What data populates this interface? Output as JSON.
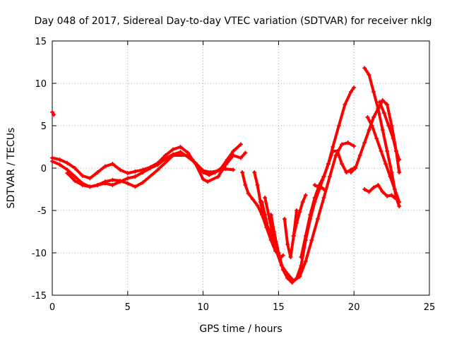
{
  "chart_data": {
    "type": "scatter",
    "title": "Day 048 of 2017, Sidereal Day-to-day VTEC variation (SDTVAR) for receiver nklg",
    "xlabel": "GPS time / hours",
    "ylabel": "SDTVAR / TECUs",
    "xlim": [
      0,
      25
    ],
    "ylim": [
      -15,
      15
    ],
    "xticks": [
      "0",
      "5",
      "10",
      "15",
      "20",
      "25"
    ],
    "yticks": [
      "-15",
      "-10",
      "-5",
      "0",
      "5",
      "10",
      "15"
    ],
    "grid": true,
    "color": "#ff0000",
    "marker": "plus",
    "series": [
      {
        "x": [
          0.0,
          0.1
        ],
        "y": [
          6.6,
          6.3
        ]
      },
      {
        "x": [
          0.0,
          0.5,
          1.0,
          1.5,
          2.0,
          2.5,
          3.0,
          3.5,
          4.0,
          4.5,
          5.0,
          5.5,
          6.0,
          6.5,
          7.0,
          7.5,
          8.0,
          8.5,
          9.0,
          9.3,
          9.6,
          10.0,
          10.4,
          10.8,
          11.2,
          11.6,
          12.0,
          12.5
        ],
        "y": [
          1.2,
          1.0,
          0.6,
          0.0,
          -0.9,
          -1.2,
          -0.5,
          0.2,
          0.5,
          -0.2,
          -0.6,
          -0.4,
          -0.2,
          0.1,
          0.6,
          1.5,
          2.2,
          2.5,
          1.8,
          1.0,
          0.3,
          -0.5,
          -0.8,
          -0.5,
          0.0,
          1.0,
          2.0,
          2.8
        ]
      },
      {
        "x": [
          0.0,
          0.5,
          1.0,
          1.5,
          2.0,
          2.5,
          3.0,
          3.5,
          4.0,
          4.5,
          5.0,
          5.5,
          6.0,
          6.5,
          7.0,
          7.5,
          8.0,
          8.5,
          9.0,
          9.5,
          10.0,
          10.5,
          11.0,
          11.5,
          12.0
        ],
        "y": [
          0.8,
          0.4,
          -0.2,
          -1.0,
          -1.8,
          -2.2,
          -2.0,
          -1.8,
          -2.0,
          -1.6,
          -1.2,
          -1.0,
          -0.5,
          0.0,
          0.4,
          1.1,
          1.6,
          1.9,
          1.3,
          0.6,
          -0.3,
          -0.5,
          -0.3,
          -0.1,
          -0.2
        ]
      },
      {
        "x": [
          1.0,
          1.5,
          2.0,
          2.5,
          3.0,
          3.5,
          4.0,
          4.5,
          5.0,
          5.5,
          6.0,
          7.0,
          8.0,
          9.0,
          9.5,
          10.0,
          10.3,
          11.0,
          11.5,
          12.0,
          12.5,
          12.8
        ],
        "y": [
          -0.6,
          -1.5,
          -2.0,
          -2.2,
          -2.0,
          -1.6,
          -1.4,
          -1.5,
          -1.8,
          -2.2,
          -1.7,
          -0.2,
          1.5,
          1.5,
          0.5,
          -1.3,
          -1.6,
          -1.0,
          0.4,
          1.5,
          1.2,
          1.8
        ]
      },
      {
        "x": [
          12.6,
          12.8,
          13.0,
          13.3,
          13.6,
          13.9,
          14.2,
          14.5,
          14.8
        ],
        "y": [
          -0.5,
          -2.0,
          -3.0,
          -3.7,
          -4.4,
          -5.5,
          -7.0,
          -8.5,
          -9.8
        ]
      },
      {
        "x": [
          13.4,
          13.6,
          13.8,
          14.0,
          14.2,
          14.4,
          14.6
        ],
        "y": [
          -0.5,
          -2.0,
          -4.0,
          -5.5,
          -6.5,
          -7.5,
          -8.5
        ]
      },
      {
        "x": [
          13.9,
          14.1,
          14.3,
          14.5,
          14.7,
          14.9,
          15.1,
          15.3
        ],
        "y": [
          -4.0,
          -5.5,
          -7.2,
          -8.3,
          -9.2,
          -10.0,
          -10.6,
          -10.3
        ]
      },
      {
        "x": [
          14.5,
          14.7,
          15.0,
          15.3,
          15.6,
          15.9,
          16.2,
          16.5,
          16.8,
          17.1,
          17.4,
          17.7,
          18.0,
          18.3,
          18.6,
          19.0,
          19.4,
          19.8,
          20.0
        ],
        "y": [
          -5.5,
          -7.5,
          -10.0,
          -12.0,
          -13.0,
          -13.5,
          -13.0,
          -11.5,
          -8.5,
          -6.0,
          -4.0,
          -2.5,
          -1.0,
          0.5,
          2.5,
          5.0,
          7.5,
          9.0,
          9.5
        ]
      },
      {
        "x": [
          14.1,
          14.4,
          14.8,
          15.2,
          15.6,
          16.0,
          16.4,
          16.8,
          17.2,
          17.6,
          18.0,
          18.4,
          18.8,
          19.2,
          19.6,
          20.0
        ],
        "y": [
          -3.5,
          -6.0,
          -9.5,
          -11.5,
          -12.5,
          -13.3,
          -12.8,
          -11.0,
          -8.5,
          -6.0,
          -3.5,
          -1.0,
          1.5,
          2.8,
          3.0,
          2.6
        ]
      },
      {
        "x": [
          15.4,
          15.6,
          15.8,
          16.0,
          16.2
        ],
        "y": [
          -6.0,
          -9.0,
          -10.5,
          -8.0,
          -5.0
        ]
      },
      {
        "x": [
          16.0,
          16.2,
          16.4,
          16.6,
          16.8
        ],
        "y": [
          -8.0,
          -6.5,
          -5.2,
          -4.0,
          -3.2
        ]
      },
      {
        "x": [
          16.5,
          16.8,
          17.1,
          17.4,
          17.7,
          18.0,
          18.3,
          18.6,
          18.9,
          19.2,
          19.5,
          19.8,
          20.0
        ],
        "y": [
          -10.5,
          -8.0,
          -5.5,
          -3.5,
          -2.0,
          -1.0,
          0.5,
          2.0,
          2.0,
          0.5,
          -0.5,
          -0.2,
          0.0
        ]
      },
      {
        "x": [
          17.4,
          17.6,
          17.8,
          18.0
        ],
        "y": [
          -2.0,
          -2.2,
          -2.2,
          -2.5
        ]
      },
      {
        "x": [
          19.8,
          20.1,
          20.4,
          20.7,
          21.0,
          21.3,
          21.6,
          21.9,
          22.2,
          22.5,
          22.8,
          23.0
        ],
        "y": [
          -0.5,
          0.0,
          1.5,
          3.0,
          4.5,
          6.0,
          7.0,
          8.0,
          7.5,
          5.0,
          2.0,
          -0.5
        ]
      },
      {
        "x": [
          20.7,
          21.0,
          21.3,
          21.6,
          21.9,
          22.2,
          22.5,
          22.8,
          23.0
        ],
        "y": [
          11.8,
          11.0,
          9.0,
          7.0,
          4.5,
          2.0,
          -0.5,
          -3.5,
          -4.5
        ]
      },
      {
        "x": [
          20.9,
          21.2,
          21.5,
          21.8,
          22.1,
          22.4,
          22.7,
          23.0
        ],
        "y": [
          6.0,
          5.0,
          3.5,
          2.0,
          0.5,
          -1.0,
          -2.5,
          -4.0
        ]
      },
      {
        "x": [
          21.7,
          22.0,
          22.3,
          22.6,
          22.8,
          23.0
        ],
        "y": [
          7.8,
          6.5,
          5.0,
          3.5,
          2.0,
          1.0
        ]
      },
      {
        "x": [
          20.7,
          21.0,
          21.3,
          21.6,
          21.9,
          22.2,
          22.5,
          22.7
        ],
        "y": [
          -2.5,
          -2.8,
          -2.3,
          -2.0,
          -2.8,
          -3.3,
          -3.2,
          -3.5
        ]
      }
    ]
  }
}
